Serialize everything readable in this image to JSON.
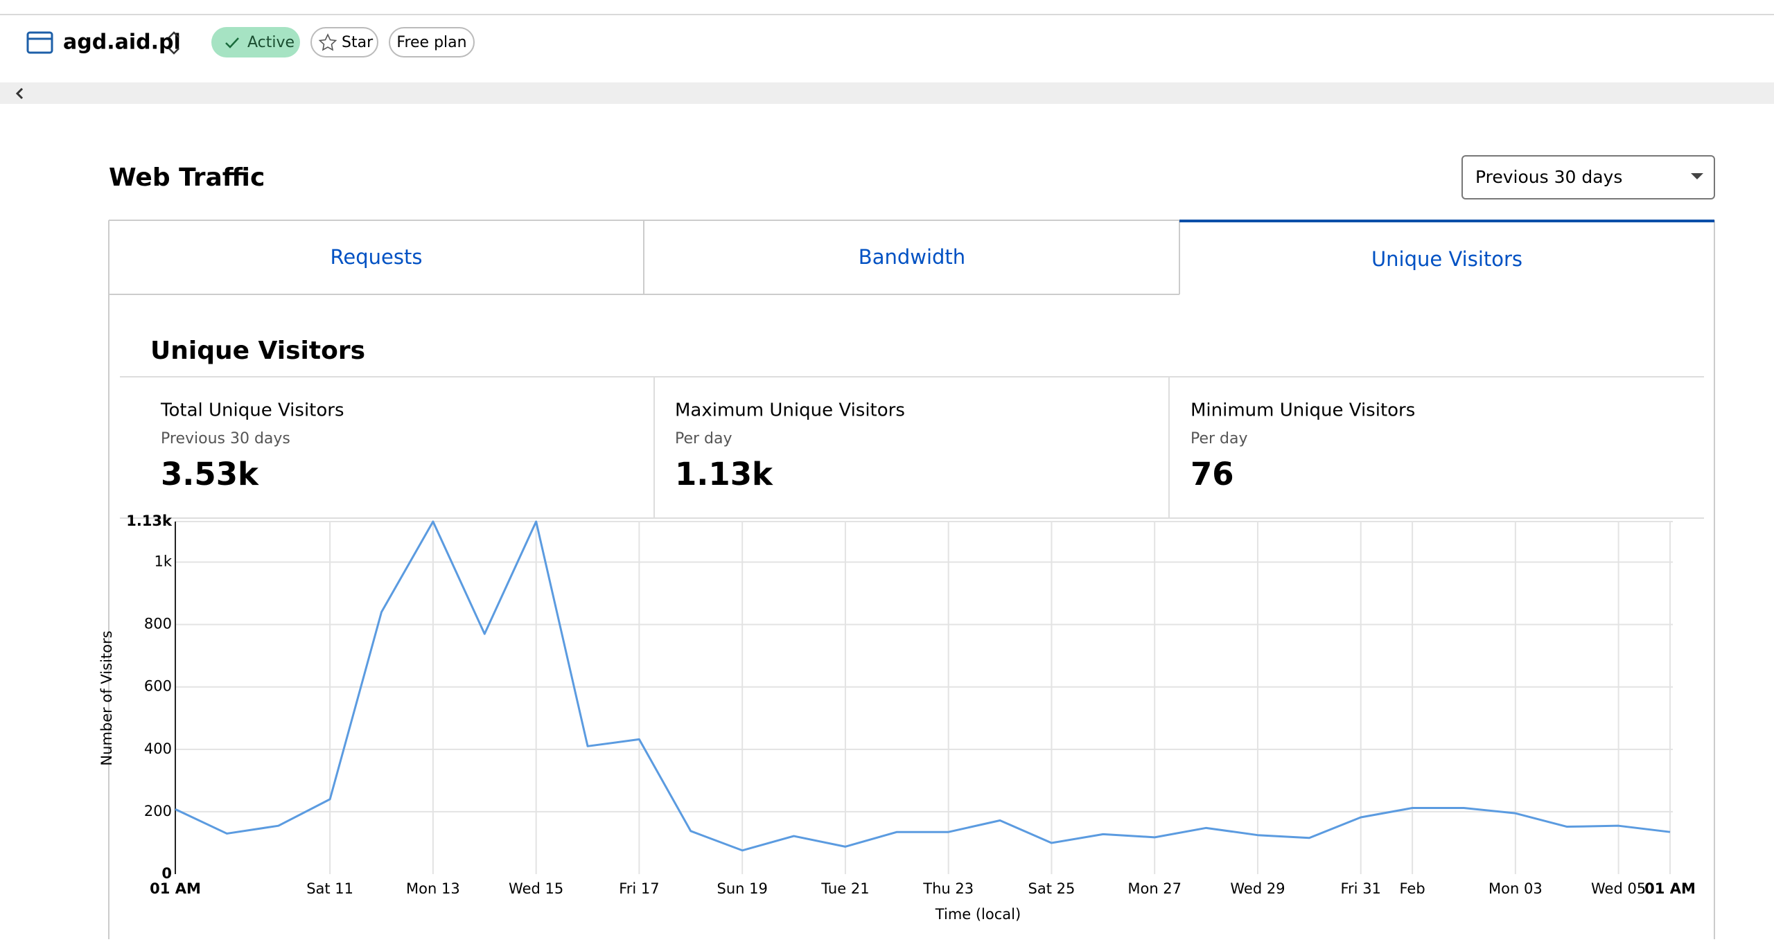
{
  "header": {
    "site": "agd.aid.pl",
    "status": "Active",
    "star": "Star",
    "plan": "Free plan"
  },
  "page_title": "Web Traffic",
  "range": "Previous 30 days",
  "tabs": [
    "Requests",
    "Bandwidth",
    "Unique Visitors"
  ],
  "stats": [
    {
      "label": "Total Unique Visitors",
      "sub": "Previous 30 days",
      "value": "3.53k"
    },
    {
      "label": "Maximum Unique Visitors",
      "sub": "Per day",
      "value": "1.13k"
    },
    {
      "label": "Minimum Unique Visitors",
      "sub": "Per day",
      "value": "76"
    }
  ],
  "chart_data": {
    "type": "line",
    "title": "Unique Visitors",
    "x_label": "Time (local)",
    "y_label": "Number of Visitors",
    "color": "#5b9be0",
    "grid": true,
    "categories": [
      "01 AM",
      null,
      null,
      "Sat 11",
      null,
      "Mon 13",
      null,
      "Wed 15",
      null,
      "Fri 17",
      null,
      "Sun 19",
      null,
      "Tue 21",
      null,
      "Thu 23",
      null,
      "Sat 25",
      null,
      "Mon 27",
      null,
      "Wed 29",
      null,
      "Fri 31",
      "Feb",
      null,
      "Mon 03",
      null,
      "Wed 05",
      "01 AM"
    ],
    "values": [
      208,
      130,
      155,
      240,
      840,
      1130,
      770,
      1130,
      410,
      432,
      138,
      76,
      122,
      88,
      135,
      135,
      172,
      100,
      128,
      118,
      148,
      125,
      116,
      182,
      212,
      212,
      195,
      152,
      155,
      135
    ],
    "ylim": [
      0,
      1130
    ],
    "yticks": [
      0,
      200,
      400,
      600,
      800,
      {
        "value": 1000,
        "label": "1k"
      },
      {
        "value": 1130,
        "label": "1.13k"
      }
    ]
  }
}
